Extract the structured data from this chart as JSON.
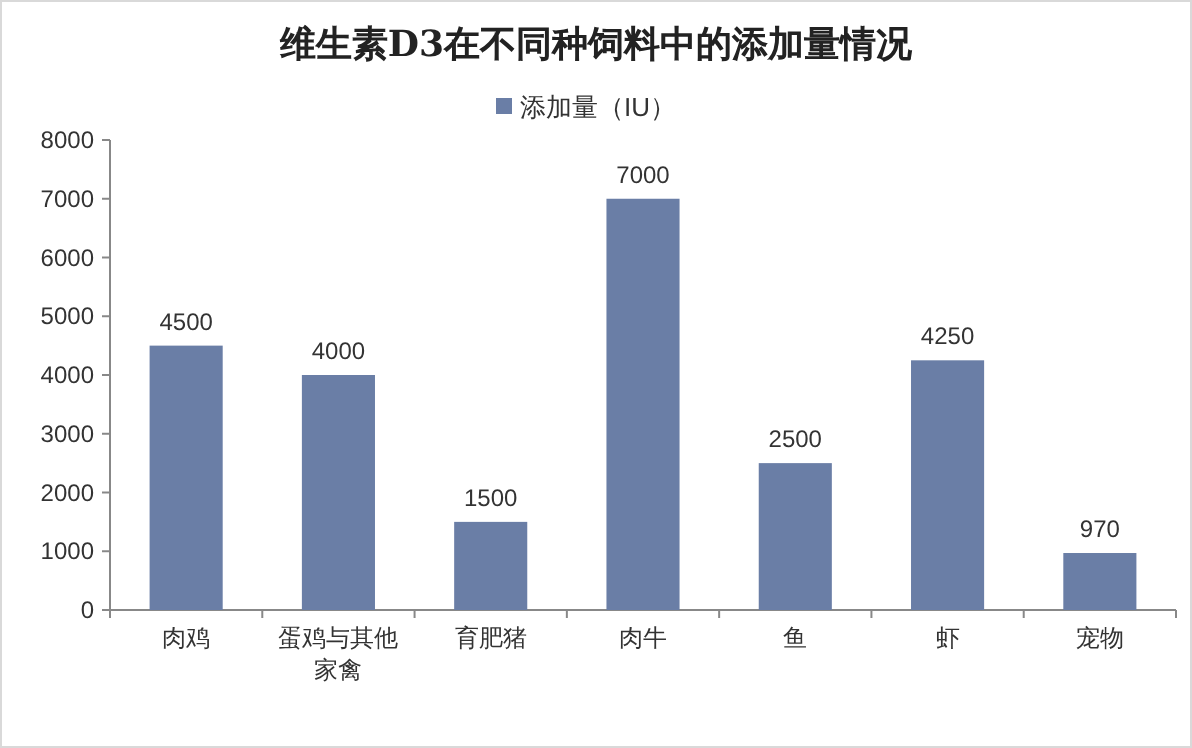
{
  "chart_data": {
    "type": "bar",
    "title": "维生素D3在不同种饲料中的添加量情况",
    "categories": [
      "肉鸡",
      "蛋鸡与其他家禽",
      "育肥猪",
      "肉牛",
      "鱼",
      "虾",
      "宠物"
    ],
    "series": [
      {
        "name": "添加量（IU）",
        "color": "#6a7ea6",
        "values": [
          4500,
          4000,
          1500,
          7000,
          2500,
          4250,
          970
        ]
      }
    ],
    "ylim": [
      0,
      8000
    ],
    "yticks": [
      0,
      1000,
      2000,
      3000,
      4000,
      5000,
      6000,
      7000,
      8000
    ],
    "data_labels": true,
    "legend": "top"
  }
}
